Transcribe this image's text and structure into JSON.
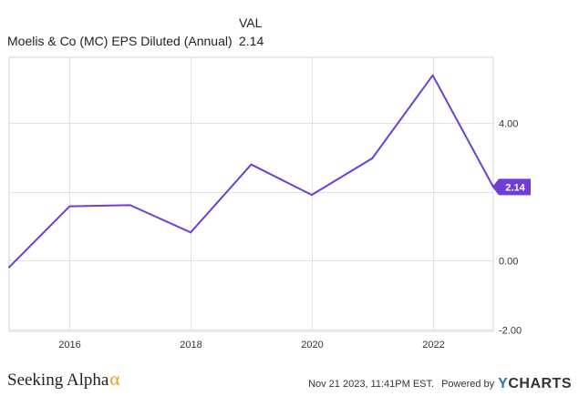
{
  "legend": {
    "header": "VAL",
    "series_name": "Moelis & Co (MC) EPS Diluted (Annual)",
    "series_value": "2.14"
  },
  "chart_data": {
    "type": "line",
    "title": "",
    "xlabel": "",
    "ylabel": "",
    "series": [
      {
        "name": "Moelis & Co (MC) EPS Diluted (Annual)",
        "x": [
          2015,
          2016,
          2017,
          2018,
          2019,
          2020,
          2021,
          2022,
          2023
        ],
        "values": [
          -0.19,
          1.58,
          1.61,
          0.82,
          2.79,
          1.91,
          2.97,
          5.38,
          2.14
        ],
        "color": "#6f3ed6"
      }
    ],
    "xlim": [
      2015,
      2023
    ],
    "ylim": [
      -2.05,
      5.9
    ],
    "xticks": [
      2016,
      2018,
      2020,
      2022
    ],
    "xtick_labels": [
      "2016",
      "2018",
      "2020",
      "2022"
    ],
    "yticks": [
      -2,
      0,
      2,
      4
    ],
    "ytick_labels": [
      "-2.00",
      "0.00",
      "",
      "4.00"
    ],
    "last_value_label": "2.14",
    "grid": true,
    "y_axis_position": "right"
  },
  "footer": {
    "brand": "Seeking Alpha",
    "brand_mark": "α",
    "timestamp": "Nov 21 2023, 11:41PM EST.",
    "powered_by": "Powered by",
    "source_y": "Y",
    "source_rest": "CHARTS"
  }
}
